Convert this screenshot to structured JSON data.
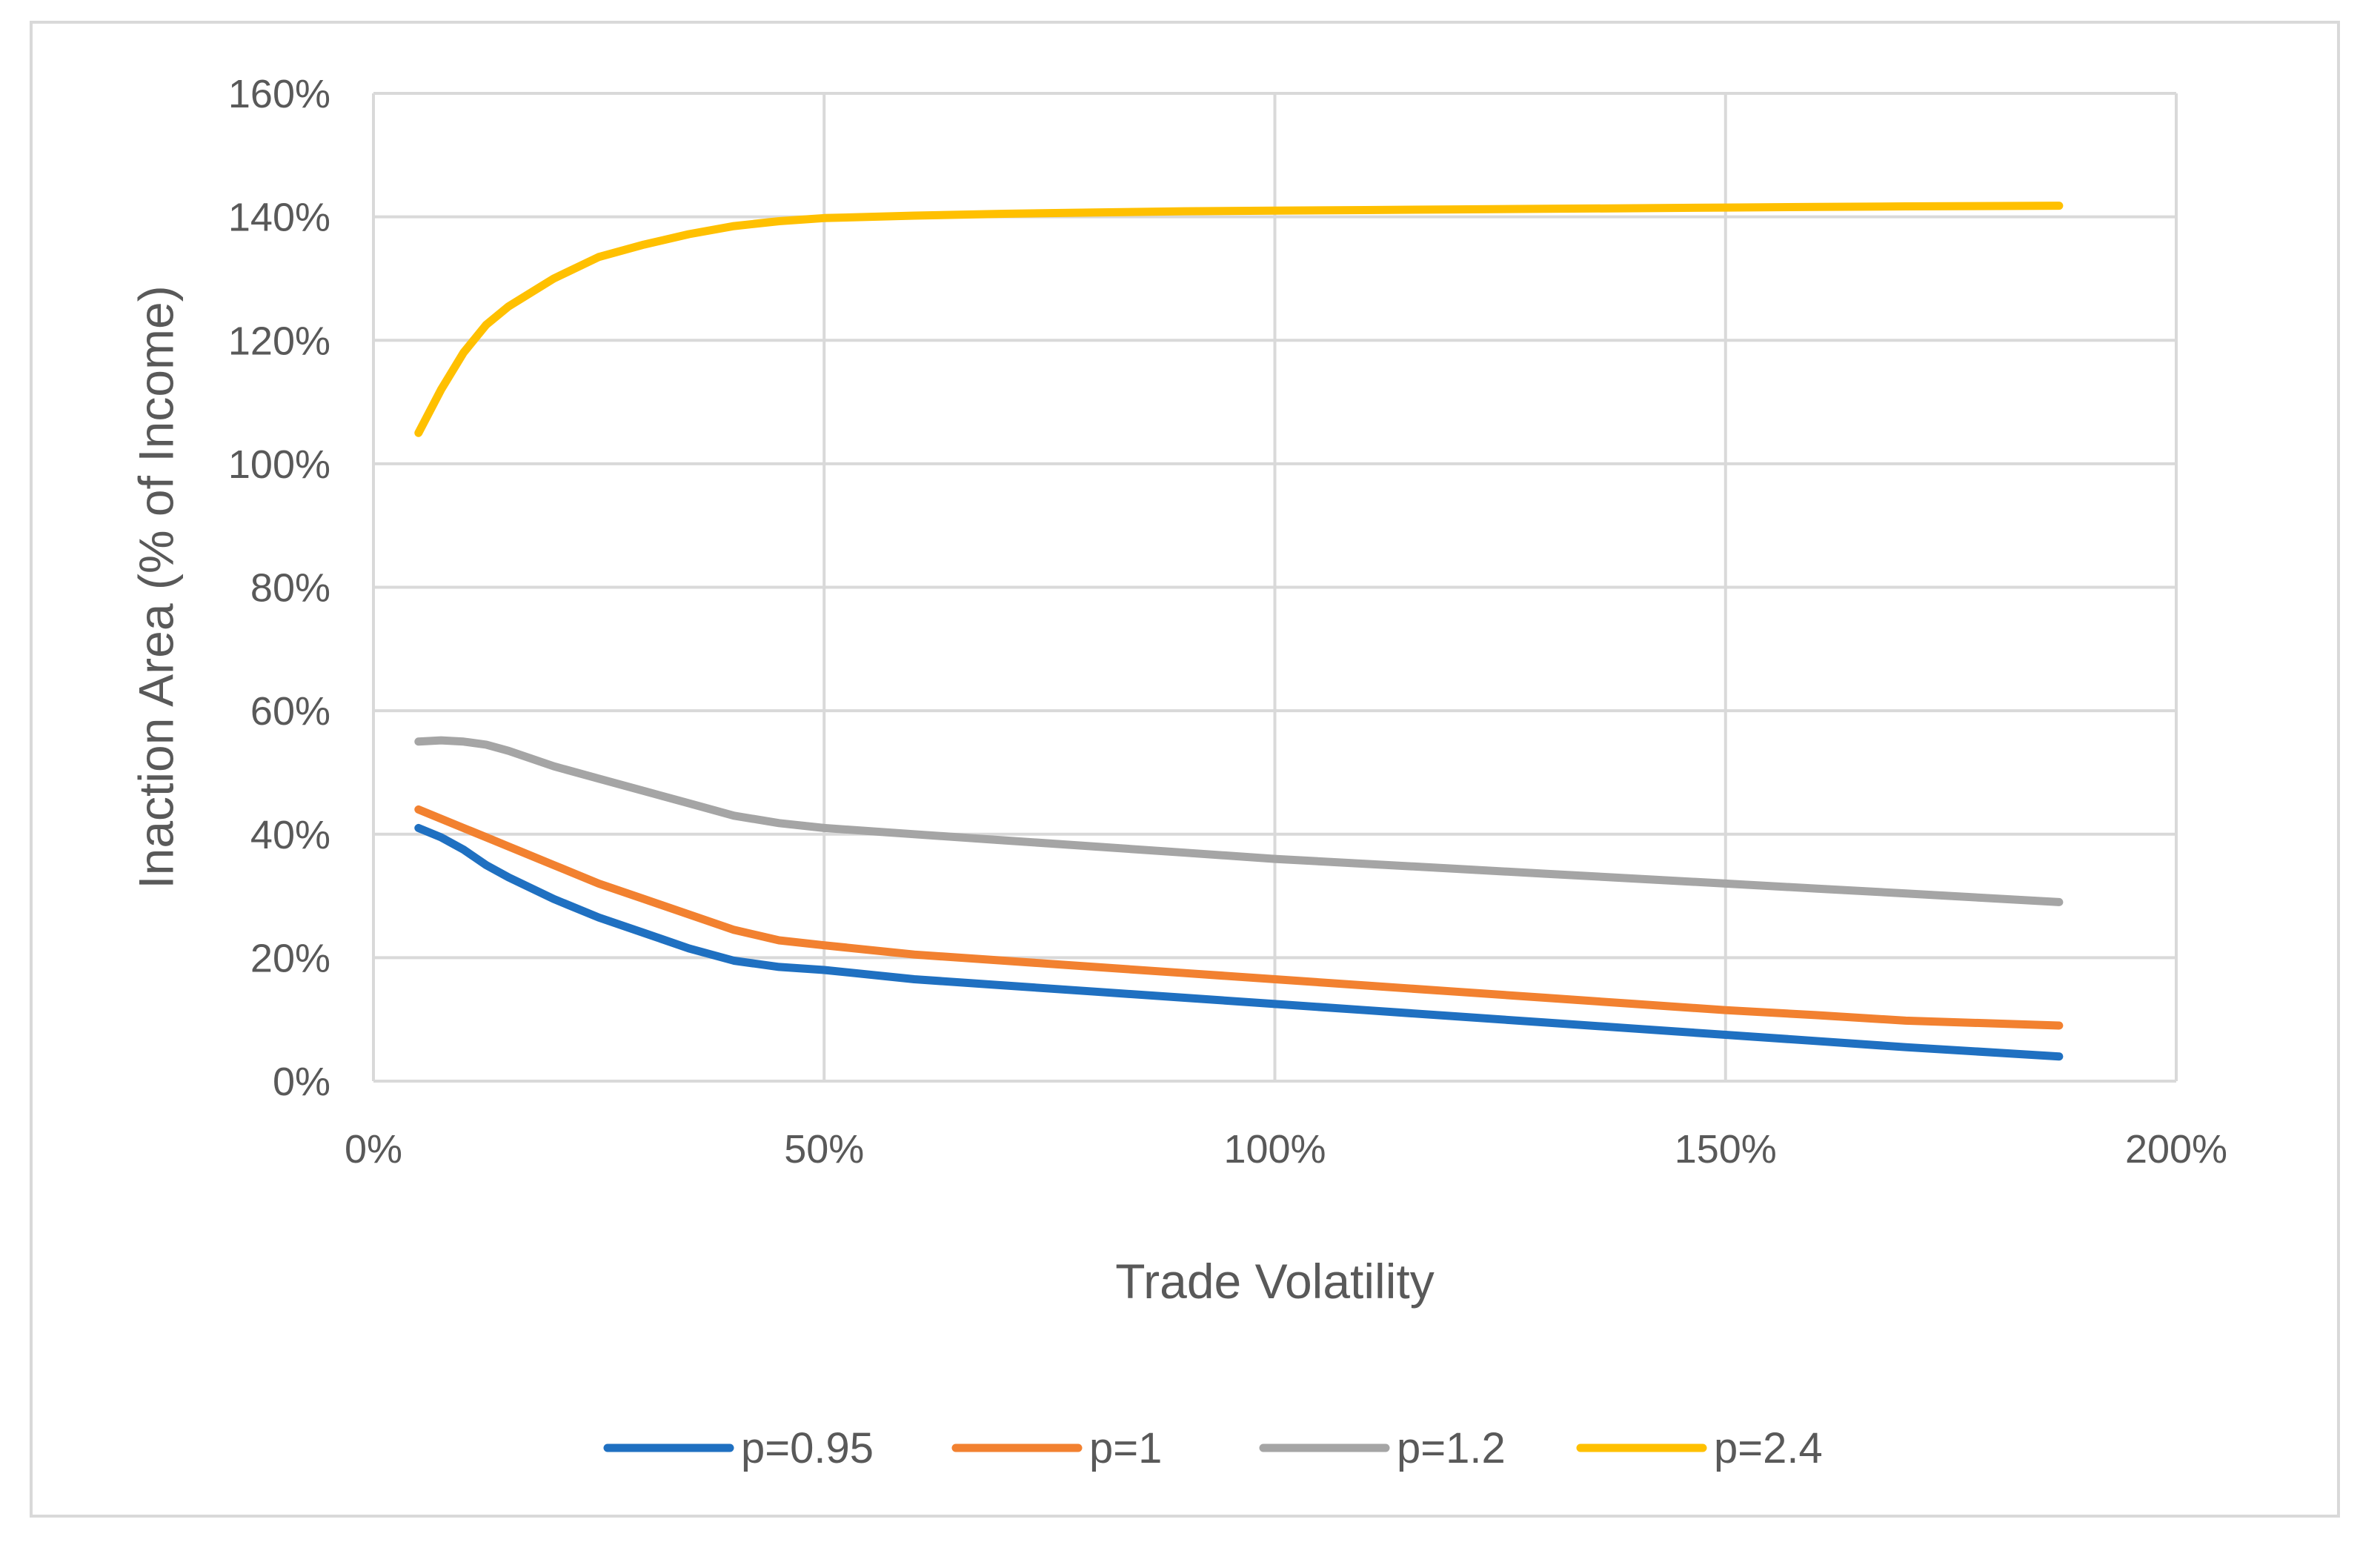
{
  "chart_data": {
    "type": "line",
    "title": "",
    "xlabel": "Trade Volatility",
    "ylabel": "Inaction Area (% of Income)",
    "xlim": [
      0,
      2
    ],
    "ylim": [
      0,
      1.6
    ],
    "x_ticks": [
      "0%",
      "50%",
      "100%",
      "150%",
      "200%"
    ],
    "y_ticks": [
      "0%",
      "20%",
      "40%",
      "60%",
      "80%",
      "100%",
      "120%",
      "140%",
      "160%"
    ],
    "grid": true,
    "legend_position": "bottom",
    "x": [
      0.05,
      0.075,
      0.1,
      0.125,
      0.15,
      0.2,
      0.25,
      0.3,
      0.35,
      0.4,
      0.45,
      0.5,
      0.6,
      0.7,
      0.8,
      0.9,
      1.0,
      1.1,
      1.2,
      1.3,
      1.4,
      1.5,
      1.6,
      1.7,
      1.87
    ],
    "series": [
      {
        "name": "p=0.95",
        "color": "#1F70C1",
        "values": [
          0.41,
          0.395,
          0.375,
          0.35,
          0.33,
          0.295,
          0.265,
          0.24,
          0.215,
          0.195,
          0.185,
          0.18,
          0.165,
          0.155,
          0.145,
          0.135,
          0.125,
          0.115,
          0.105,
          0.095,
          0.085,
          0.075,
          0.065,
          0.055,
          0.04
        ]
      },
      {
        "name": "p=1",
        "color": "#F28130",
        "values": [
          0.44,
          0.425,
          0.41,
          0.395,
          0.38,
          0.35,
          0.32,
          0.295,
          0.27,
          0.245,
          0.228,
          0.22,
          0.205,
          0.195,
          0.185,
          0.175,
          0.165,
          0.155,
          0.145,
          0.135,
          0.125,
          0.115,
          0.107,
          0.098,
          0.09
        ]
      },
      {
        "name": "p=1.2",
        "color": "#A5A5A5",
        "values": [
          0.55,
          0.552,
          0.55,
          0.545,
          0.535,
          0.51,
          0.49,
          0.47,
          0.45,
          0.43,
          0.418,
          0.41,
          0.4,
          0.39,
          0.38,
          0.37,
          0.36,
          0.352,
          0.344,
          0.336,
          0.328,
          0.32,
          0.312,
          0.304,
          0.29
        ]
      },
      {
        "name": "p=2.4",
        "color": "#FFC000",
        "values": [
          1.05,
          1.12,
          1.18,
          1.225,
          1.255,
          1.3,
          1.335,
          1.355,
          1.372,
          1.385,
          1.393,
          1.398,
          1.402,
          1.405,
          1.407,
          1.409,
          1.41,
          1.411,
          1.412,
          1.413,
          1.414,
          1.415,
          1.416,
          1.417,
          1.418
        ]
      }
    ]
  }
}
